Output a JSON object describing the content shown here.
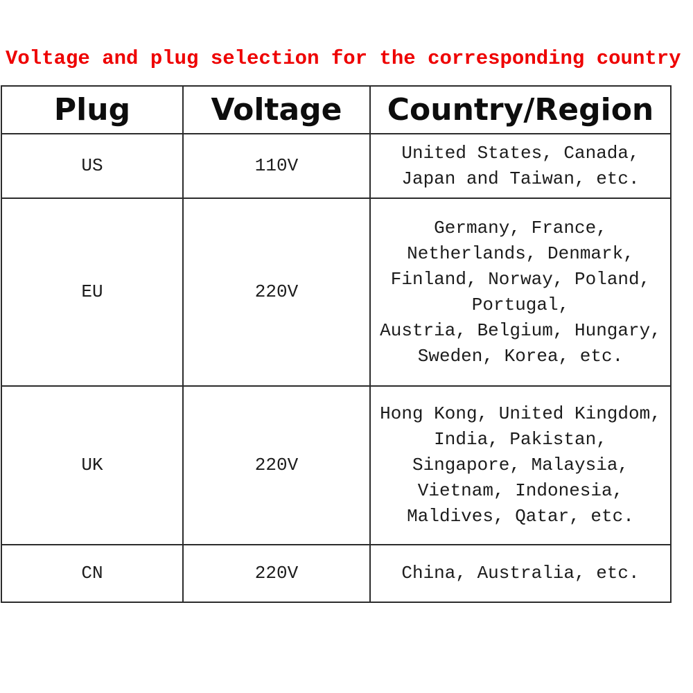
{
  "title": {
    "text": "Voltage and plug selection for the corresponding country",
    "color": "#ee0000"
  },
  "table": {
    "headers": [
      "Plug",
      "Voltage",
      "Country/Region"
    ],
    "rows": [
      {
        "plug": "US",
        "voltage": "110V",
        "countries": "United States, Canada,\nJapan and Taiwan, etc."
      },
      {
        "plug": "EU",
        "voltage": "220V",
        "countries": "Germany, France,\nNetherlands, Denmark,\nFinland, Norway, Poland,\nPortugal,\nAustria, Belgium, Hungary,\nSweden, Korea, etc."
      },
      {
        "plug": "UK",
        "voltage": "220V",
        "countries": "Hong Kong, United Kingdom,\nIndia, Pakistan,\nSingapore, Malaysia,\nVietnam, Indonesia,\nMaldives, Qatar, etc."
      },
      {
        "plug": "CN",
        "voltage": "220V",
        "countries": "China, Australia, etc."
      }
    ]
  },
  "colors": {
    "title_red": "#ee0000",
    "border": "#2b2b2b",
    "text": "#1c1c1c",
    "background": "#ffffff"
  }
}
